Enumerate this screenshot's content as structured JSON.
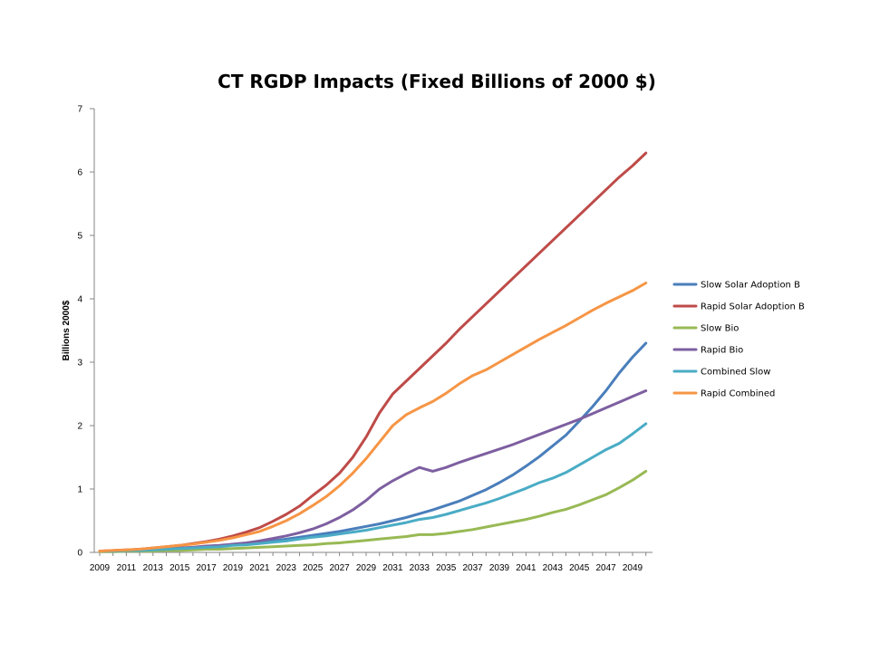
{
  "chart_data": {
    "type": "line",
    "title": "CT RGDP Impacts (Fixed Billions of 2000 $)",
    "ylabel": "Billions  2000$",
    "xlabel": "",
    "ylim": [
      0,
      7
    ],
    "y_ticks": [
      0,
      1,
      2,
      3,
      4,
      5,
      6,
      7
    ],
    "x_tick_labels": [
      "2009",
      "2011",
      "2013",
      "2015",
      "2017",
      "2019",
      "2021",
      "2023",
      "2025",
      "2027",
      "2029",
      "2031",
      "2033",
      "2035",
      "2037",
      "2039",
      "2041",
      "2043",
      "2045",
      "2047",
      "2049"
    ],
    "x": [
      2009,
      2010,
      2011,
      2012,
      2013,
      2014,
      2015,
      2016,
      2017,
      2018,
      2019,
      2020,
      2021,
      2022,
      2023,
      2024,
      2025,
      2026,
      2027,
      2028,
      2029,
      2030,
      2031,
      2032,
      2033,
      2034,
      2035,
      2036,
      2037,
      2038,
      2039,
      2040,
      2041,
      2042,
      2043,
      2044,
      2045,
      2046,
      2047,
      2048,
      2049,
      2050
    ],
    "legend_position": "right",
    "grid": false,
    "series": [
      {
        "name": "Slow Solar Adoption B",
        "color": "#4a7ebb",
        "values": [
          0.02,
          0.02,
          0.03,
          0.03,
          0.04,
          0.05,
          0.06,
          0.07,
          0.09,
          0.1,
          0.12,
          0.14,
          0.16,
          0.18,
          0.21,
          0.24,
          0.27,
          0.3,
          0.33,
          0.37,
          0.41,
          0.45,
          0.5,
          0.55,
          0.61,
          0.67,
          0.74,
          0.81,
          0.9,
          0.99,
          1.1,
          1.22,
          1.36,
          1.51,
          1.68,
          1.85,
          2.07,
          2.3,
          2.55,
          2.83,
          3.08,
          3.3
        ]
      },
      {
        "name": "Rapid Solar Adoption B",
        "color": "#be4b48",
        "values": [
          0.02,
          0.03,
          0.04,
          0.05,
          0.07,
          0.09,
          0.11,
          0.14,
          0.17,
          0.21,
          0.26,
          0.32,
          0.39,
          0.49,
          0.6,
          0.73,
          0.9,
          1.06,
          1.25,
          1.5,
          1.82,
          2.2,
          2.5,
          2.7,
          2.9,
          3.1,
          3.3,
          3.52,
          3.72,
          3.92,
          4.12,
          4.32,
          4.52,
          4.72,
          4.92,
          5.12,
          5.32,
          5.52,
          5.72,
          5.92,
          6.1,
          6.3
        ]
      },
      {
        "name": "Slow Bio",
        "color": "#98b954",
        "values": [
          0.01,
          0.01,
          0.02,
          0.02,
          0.02,
          0.03,
          0.03,
          0.04,
          0.05,
          0.05,
          0.06,
          0.07,
          0.08,
          0.09,
          0.1,
          0.11,
          0.12,
          0.14,
          0.15,
          0.17,
          0.19,
          0.21,
          0.23,
          0.25,
          0.28,
          0.28,
          0.3,
          0.33,
          0.36,
          0.4,
          0.44,
          0.48,
          0.52,
          0.57,
          0.63,
          0.68,
          0.75,
          0.83,
          0.91,
          1.02,
          1.14,
          1.28
        ]
      },
      {
        "name": "Rapid Bio",
        "color": "#7d5fa0",
        "values": [
          0.02,
          0.02,
          0.03,
          0.04,
          0.05,
          0.06,
          0.07,
          0.08,
          0.1,
          0.11,
          0.13,
          0.15,
          0.18,
          0.22,
          0.26,
          0.31,
          0.37,
          0.45,
          0.55,
          0.67,
          0.82,
          1.0,
          1.13,
          1.24,
          1.34,
          1.28,
          1.34,
          1.42,
          1.49,
          1.56,
          1.63,
          1.7,
          1.78,
          1.86,
          1.94,
          2.02,
          2.1,
          2.19,
          2.28,
          2.37,
          2.46,
          2.55
        ]
      },
      {
        "name": "Combined Slow",
        "color": "#4aacc5",
        "values": [
          0.02,
          0.02,
          0.03,
          0.03,
          0.04,
          0.05,
          0.06,
          0.07,
          0.08,
          0.09,
          0.11,
          0.12,
          0.14,
          0.16,
          0.18,
          0.21,
          0.24,
          0.26,
          0.29,
          0.32,
          0.35,
          0.39,
          0.43,
          0.47,
          0.52,
          0.55,
          0.6,
          0.66,
          0.72,
          0.78,
          0.85,
          0.93,
          1.01,
          1.1,
          1.17,
          1.26,
          1.38,
          1.5,
          1.62,
          1.72,
          1.87,
          2.03
        ]
      },
      {
        "name": "Rapid Combined",
        "color": "#f69545",
        "values": [
          0.02,
          0.03,
          0.04,
          0.05,
          0.07,
          0.09,
          0.11,
          0.13,
          0.16,
          0.19,
          0.23,
          0.28,
          0.33,
          0.41,
          0.5,
          0.61,
          0.74,
          0.88,
          1.05,
          1.25,
          1.48,
          1.74,
          2.0,
          2.17,
          2.28,
          2.38,
          2.51,
          2.66,
          2.79,
          2.88,
          3.0,
          3.12,
          3.24,
          3.36,
          3.47,
          3.58,
          3.7,
          3.82,
          3.93,
          4.03,
          4.13,
          4.25
        ]
      }
    ]
  }
}
